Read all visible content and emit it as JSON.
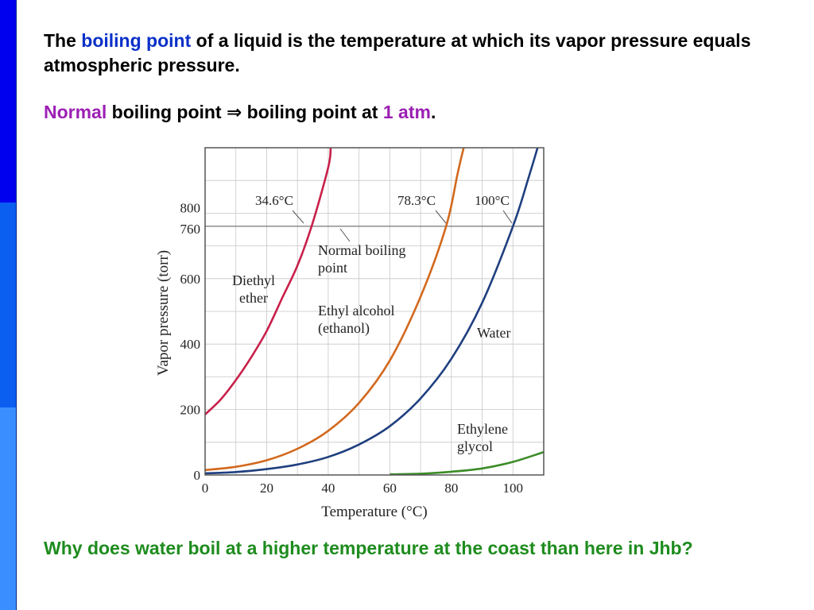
{
  "slide": {
    "accent_colors": {
      "sidebar_top": "#0000ee",
      "sidebar_mid": "#0a5ef0",
      "sidebar_bot": "#3b8eff"
    },
    "definition": {
      "prefix": "The ",
      "term": "boiling point",
      "term_color": "#0a30c8",
      "rest": " of a liquid is the temperature at which its vapor pressure equals atmospheric pressure."
    },
    "normal": {
      "term": "Normal",
      "term_color": "#9b1fb3",
      "middle": " boiling point ⇒ boiling point at ",
      "value": "1 atm",
      "value_color": "#9b1fb3",
      "suffix": "."
    },
    "question": {
      "text": "Why does water boil at a higher temperature at the coast than here in Jhb?",
      "color": "#1e8c1e"
    }
  },
  "chart_data": {
    "type": "line",
    "title": "",
    "xlabel": "Temperature (°C)",
    "ylabel": "Vapor pressure (torr)",
    "xlim": [
      0,
      110
    ],
    "ylim": [
      0,
      1000
    ],
    "xticks": [
      0,
      20,
      40,
      60,
      80,
      100
    ],
    "yticks": [
      0,
      200,
      400,
      600,
      760,
      800
    ],
    "grid": true,
    "reference_line": {
      "y": 760,
      "label": "Normal boiling point"
    },
    "series": [
      {
        "name": "Diethyl ether",
        "label_lines": [
          "Diethyl",
          "ether"
        ],
        "color": "#c8204a",
        "boiling_point_label": "34.6°C",
        "x": [
          0,
          5,
          10,
          15,
          20,
          25,
          30,
          34.6,
          40,
          40.8
        ],
        "y": [
          185,
          230,
          290,
          360,
          440,
          540,
          640,
          760,
          940,
          1000
        ]
      },
      {
        "name": "Ethyl alcohol (ethanol)",
        "label_lines": [
          "Ethyl alcohol",
          "(ethanol)"
        ],
        "color": "#d2691e",
        "boiling_point_label": "78.3°C",
        "x": [
          0,
          10,
          20,
          30,
          40,
          50,
          60,
          70,
          78.3,
          82,
          84
        ],
        "y": [
          15,
          25,
          45,
          80,
          135,
          220,
          350,
          545,
          760,
          920,
          1000
        ]
      },
      {
        "name": "Water",
        "label_lines": [
          "Water"
        ],
        "color": "#1f3f7f",
        "boiling_point_label": "100°C",
        "x": [
          0,
          10,
          20,
          30,
          40,
          50,
          60,
          70,
          80,
          90,
          100,
          105,
          108
        ],
        "y": [
          5,
          9,
          18,
          32,
          55,
          93,
          149,
          234,
          355,
          526,
          760,
          906,
          1000
        ]
      },
      {
        "name": "Ethylene glycol",
        "label_lines": [
          "Ethylene",
          "glycol"
        ],
        "color": "#3c8c28",
        "x": [
          60,
          70,
          80,
          90,
          100,
          110
        ],
        "y": [
          2,
          4,
          10,
          20,
          40,
          70
        ]
      }
    ]
  }
}
